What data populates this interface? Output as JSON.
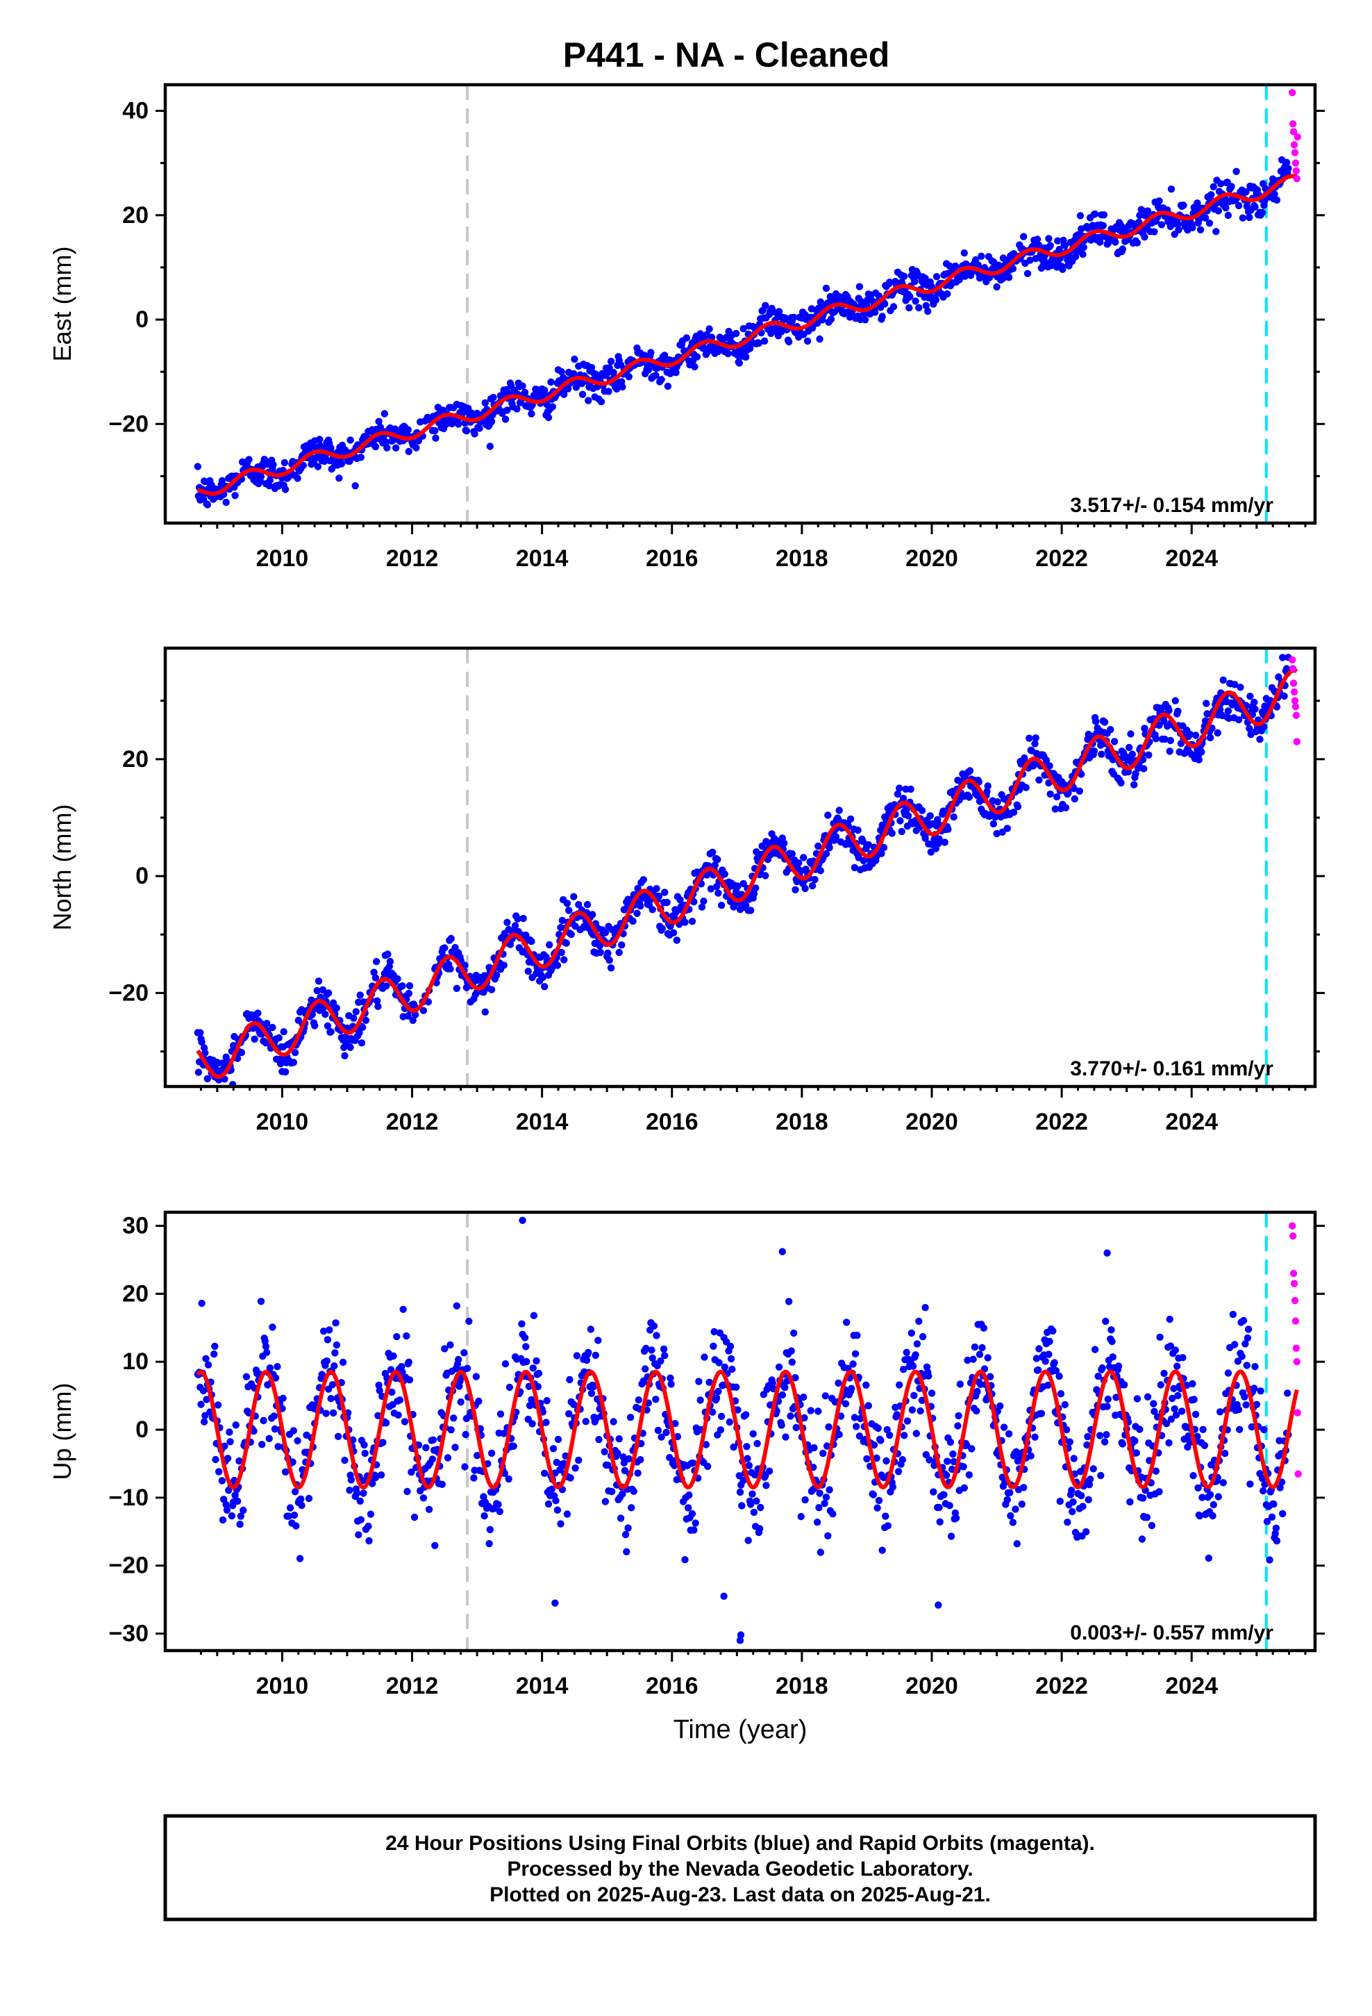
{
  "title": "P441  - NA - Cleaned",
  "footer": {
    "line1": "24 Hour Positions Using Final Orbits (blue) and Rapid Orbits (magenta).",
    "line2": "Processed by the Nevada Geodetic Laboratory.",
    "line3": "Plotted on 2025-Aug-23. Last data on 2025-Aug-21."
  },
  "colors": {
    "final_orbits": "#0000ff",
    "rapid_orbits": "#ff00ff",
    "model_fit": "#ff0000",
    "event_line": "#c8c8c8",
    "recent_event_line": "#00e5ff"
  },
  "chart_data": [
    {
      "type": "scatter",
      "ylabel": "East (mm)",
      "xlabel": "",
      "xlim": [
        2008.2,
        2025.9
      ],
      "ylim": [
        -39,
        45
      ],
      "x_ticks": [
        2010,
        2012,
        2014,
        2016,
        2018,
        2020,
        2022,
        2024
      ],
      "y_ticks": [
        -20,
        0,
        20,
        40
      ],
      "vertical_lines": [
        {
          "x": 2012.85,
          "style": "dashed",
          "color": "#c8c8c8"
        },
        {
          "x": 2025.15,
          "style": "dashed",
          "color": "#00e5ff"
        }
      ],
      "rate_label": "3.517+/- 0.154 mm/yr",
      "series": [
        {
          "name": "Final Orbits",
          "color": "#0000ff",
          "x_start": 2008.7,
          "x_end": 2025.5,
          "trend": {
            "intercept_at_2008_7": -33,
            "rate": 3.517
          },
          "annual_amplitude": 1.3,
          "scatter_sd": 1.6
        },
        {
          "name": "Rapid Orbits",
          "color": "#ff00ff",
          "x": [
            2025.55,
            2025.56,
            2025.57,
            2025.58,
            2025.59,
            2025.6,
            2025.61,
            2025.62,
            2025.63
          ],
          "y": [
            43.5,
            37.5,
            36,
            33.5,
            32,
            30,
            28.5,
            27,
            35
          ]
        },
        {
          "name": "Model",
          "color": "#ff0000",
          "type": "line"
        }
      ]
    },
    {
      "type": "scatter",
      "ylabel": "North (mm)",
      "xlabel": "",
      "xlim": [
        2008.2,
        2025.9
      ],
      "ylim": [
        -36,
        39
      ],
      "x_ticks": [
        2010,
        2012,
        2014,
        2016,
        2018,
        2020,
        2022,
        2024
      ],
      "y_ticks": [
        -20,
        0,
        20
      ],
      "vertical_lines": [
        {
          "x": 2012.85,
          "style": "dashed",
          "color": "#c8c8c8"
        },
        {
          "x": 2025.15,
          "style": "dashed",
          "color": "#00e5ff"
        }
      ],
      "rate_label": "3.770+/- 0.161 mm/yr",
      "series": [
        {
          "name": "Final Orbits",
          "color": "#0000ff",
          "x_start": 2008.7,
          "x_end": 2025.5,
          "trend": {
            "intercept_at_2008_7": -32,
            "rate": 3.77
          },
          "annual_amplitude": 3.6,
          "scatter_sd": 1.8
        },
        {
          "name": "Rapid Orbits",
          "color": "#ff00ff",
          "x": [
            2025.55,
            2025.56,
            2025.57,
            2025.58,
            2025.59,
            2025.6,
            2025.61,
            2025.62
          ],
          "y": [
            37,
            35.5,
            33,
            31.5,
            30,
            29,
            27.5,
            23
          ]
        },
        {
          "name": "Model",
          "color": "#ff0000",
          "type": "line"
        }
      ]
    },
    {
      "type": "scatter",
      "ylabel": "Up (mm)",
      "xlabel": "Time (year)",
      "xlim": [
        2008.2,
        2025.9
      ],
      "ylim": [
        -32.5,
        32
      ],
      "x_ticks": [
        2010,
        2012,
        2014,
        2016,
        2018,
        2020,
        2022,
        2024
      ],
      "y_ticks": [
        -30,
        -20,
        -10,
        0,
        10,
        20,
        30
      ],
      "vertical_lines": [
        {
          "x": 2012.85,
          "style": "dashed",
          "color": "#c8c8c8"
        },
        {
          "x": 2025.15,
          "style": "dashed",
          "color": "#00e5ff"
        }
      ],
      "rate_label": "0.003+/- 0.557 mm/yr",
      "series": [
        {
          "name": "Final Orbits",
          "color": "#0000ff",
          "x_start": 2008.7,
          "x_end": 2025.5,
          "trend": {
            "intercept_at_2008_7": 0,
            "rate": 0.003
          },
          "annual_amplitude": 8.5,
          "scatter_sd": 4.5
        },
        {
          "name": "Rapid Orbits",
          "color": "#ff00ff",
          "x": [
            2025.55,
            2025.56,
            2025.57,
            2025.58,
            2025.59,
            2025.6,
            2025.61,
            2025.62,
            2025.63,
            2025.64
          ],
          "y": [
            30,
            28.5,
            23,
            21.5,
            19,
            16,
            12,
            10,
            2.5,
            -6.5
          ]
        },
        {
          "name": "Model",
          "color": "#ff0000",
          "type": "line"
        }
      ]
    }
  ]
}
